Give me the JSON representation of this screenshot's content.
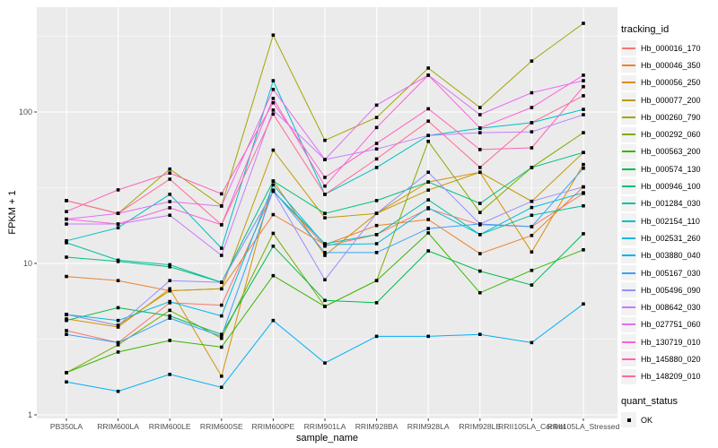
{
  "chart_data": {
    "type": "line",
    "title": "",
    "xlabel": "sample_name",
    "ylabel": "FPKM + 1",
    "y_scale": "log10",
    "ylim": [
      1,
      490
    ],
    "grid": true,
    "y_tick_labels": [
      "1",
      "10",
      "100"
    ],
    "y_tick_values": [
      1,
      10,
      100
    ],
    "y_minor_values": [
      3.1623,
      31.623,
      316.23
    ],
    "x_categories": [
      "PB350LA",
      "RRIM600LA",
      "RRIM600LE",
      "RRIM600SE",
      "RRIM600PE",
      "RRIM901LA",
      "RRIM928BA",
      "RRIM928LA",
      "RRIM928LE",
      "RRII105LA_Control",
      "RRII105LA_Stressed"
    ],
    "legend": {
      "title": "tracking_id",
      "position": "right"
    },
    "legend2": {
      "title": "quant_status",
      "items": [
        {
          "label": "OK",
          "marker": "black-square"
        }
      ]
    },
    "point_marker": "black-square",
    "series": [
      {
        "name": "Hb_000016_170",
        "color": "#F8766D",
        "values": [
          3.6,
          3.0,
          5.5,
          5.3,
          30,
          13,
          15.5,
          23,
          18,
          17.5,
          29
        ]
      },
      {
        "name": "Hb_000046_350",
        "color": "#EA8331",
        "values": [
          8.2,
          7.7,
          6.6,
          6.8,
          21,
          13.3,
          17.8,
          19.5,
          11.6,
          15.3,
          32
        ]
      },
      {
        "name": "Hb_000056_250",
        "color": "#D89000",
        "values": [
          4.3,
          3.8,
          6.8,
          1.8,
          35,
          11.3,
          21.4,
          34.5,
          40,
          11.9,
          45
        ]
      },
      {
        "name": "Hb_000077_200",
        "color": "#C09B00",
        "values": [
          4.6,
          3.9,
          6.6,
          6.8,
          56,
          20,
          21.4,
          30.5,
          40,
          25.7,
          54
        ]
      },
      {
        "name": "Hb_000260_790",
        "color": "#A3A500",
        "values": [
          26,
          21.4,
          42,
          24,
          322,
          65,
          92,
          195,
          107,
          217,
          385
        ]
      },
      {
        "name": "Hb_000292_060",
        "color": "#7CAE00",
        "values": [
          1.9,
          2.9,
          4.9,
          3.2,
          15.8,
          5.2,
          7.7,
          64,
          21.7,
          43,
          73
        ]
      },
      {
        "name": "Hb_000563_200",
        "color": "#39B600",
        "values": [
          1.9,
          2.6,
          3.1,
          2.8,
          8.3,
          5.2,
          7.7,
          15.9,
          6.4,
          9.0,
          12.3
        ]
      },
      {
        "name": "Hb_000574_130",
        "color": "#00BB4E",
        "values": [
          4.2,
          5.1,
          4.5,
          3.4,
          13,
          5.7,
          5.5,
          12.1,
          8.9,
          7.2,
          15.7
        ]
      },
      {
        "name": "Hb_000946_100",
        "color": "#00BF7D",
        "values": [
          11,
          10.3,
          9.5,
          7.5,
          35,
          21.4,
          26,
          34.5,
          24.9,
          43,
          54
        ]
      },
      {
        "name": "Hb_001284_030",
        "color": "#00C1A3",
        "values": [
          13.7,
          10.5,
          9.8,
          7.5,
          30,
          13.5,
          15.5,
          26.3,
          15.5,
          20.8,
          24
        ]
      },
      {
        "name": "Hb_002154_110",
        "color": "#00BFC4",
        "values": [
          14.1,
          17.2,
          28.6,
          12.6,
          161,
          28.6,
          43,
          70,
          78,
          85,
          104
        ]
      },
      {
        "name": "Hb_002531_260",
        "color": "#00BAE0",
        "values": [
          4.6,
          4.2,
          5.6,
          4.5,
          33,
          13.3,
          13.5,
          23.3,
          15.5,
          23.4,
          29.3
        ]
      },
      {
        "name": "Hb_003880_040",
        "color": "#00B0F6",
        "values": [
          1.65,
          1.43,
          1.85,
          1.52,
          4.2,
          2.2,
          3.3,
          3.3,
          3.4,
          3.0,
          5.4
        ]
      },
      {
        "name": "Hb_005167_030",
        "color": "#35A2FF",
        "values": [
          3.4,
          3.0,
          4.35,
          3.3,
          30.5,
          11.8,
          11.8,
          17,
          18.2,
          17.5,
          42.5
        ]
      },
      {
        "name": "Hb_005496_090",
        "color": "#9590FF",
        "values": [
          4.6,
          3.9,
          7.7,
          7.5,
          30,
          7.8,
          21.4,
          40,
          18.2,
          25.7,
          32
        ]
      },
      {
        "name": "Hb_008642_030",
        "color": "#C77CFF",
        "values": [
          18.2,
          18.2,
          20.8,
          11.3,
          103,
          48.5,
          57,
          70,
          73,
          74,
          96
        ]
      },
      {
        "name": "Hb_027751_060",
        "color": "#E76BF3",
        "values": [
          19.6,
          21.4,
          25.6,
          23.9,
          141,
          48.5,
          111,
          175,
          96,
          134,
          161
        ]
      },
      {
        "name": "Hb_130719_010",
        "color": "#FA62DB",
        "values": [
          19.6,
          18.2,
          23.3,
          18,
          123,
          32.4,
          79,
          175,
          78.5,
          107,
          175
        ]
      },
      {
        "name": "Hb_145880_020",
        "color": "#FF62BC",
        "values": [
          22,
          30.6,
          39.5,
          28.8,
          115,
          37,
          62,
          105,
          56.5,
          58,
          147
        ]
      },
      {
        "name": "Hb_148209_010",
        "color": "#FF6A98",
        "values": [
          26,
          21.4,
          36,
          18,
          97,
          28.6,
          49,
          87,
          43,
          85,
          128
        ]
      }
    ]
  },
  "colors": {
    "panel_bg": "#EBEBEB",
    "grid": "#FFFFFF",
    "tick_label": "#4D4D4D",
    "axis_title": "#000000",
    "legend_key_bg": "#F2F2F2",
    "point": "#000000",
    "tick_mark": "#333333"
  }
}
